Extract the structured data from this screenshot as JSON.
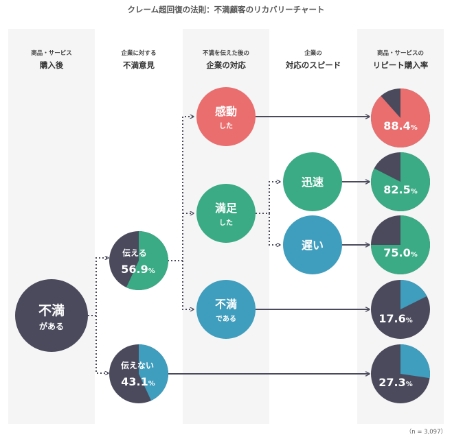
{
  "title": "クレーム超回復の法則：不満顧客のリカバリーチャート",
  "columns": [
    {
      "line1": "商品・サービス",
      "line2": "購入後"
    },
    {
      "line1": "企業に対する",
      "line2": "不満意見"
    },
    {
      "line1": "不満を伝えた後の",
      "line2": "企業の対応"
    },
    {
      "line1": "企業の",
      "line2": "対応のスピード"
    },
    {
      "line1": "商品・サービスの",
      "line2": "リピート購入率"
    }
  ],
  "nodes": {
    "start": {
      "line1": "不満",
      "line2": "がある"
    },
    "told": {
      "label": "伝える",
      "value": "56.9",
      "unit": "%"
    },
    "not_told": {
      "label": "伝えない",
      "value": "43.1",
      "unit": "%"
    },
    "moved": {
      "line1": "感動",
      "line2": "した"
    },
    "satisfied": {
      "line1": "満足",
      "line2": "した"
    },
    "dissatisfied": {
      "line1": "不満",
      "line2": "である"
    },
    "fast": {
      "label": "迅速"
    },
    "slow": {
      "label": "遅い"
    }
  },
  "results": [
    {
      "key": "moved",
      "value": "88.4",
      "unit": "%"
    },
    {
      "key": "fast",
      "value": "82.5",
      "unit": "%"
    },
    {
      "key": "slow",
      "value": "75.0",
      "unit": "%"
    },
    {
      "key": "dissatisfied",
      "value": "17.6",
      "unit": "%"
    },
    {
      "key": "not_told",
      "value": "27.3",
      "unit": "%"
    }
  ],
  "sample_note": "（n = 3,097）",
  "colors": {
    "dark": "#4a4a5c",
    "green": "#3aab84",
    "red": "#ea6e6e",
    "blue": "#3f9dbd",
    "column_band": "#f5f5f5"
  }
}
